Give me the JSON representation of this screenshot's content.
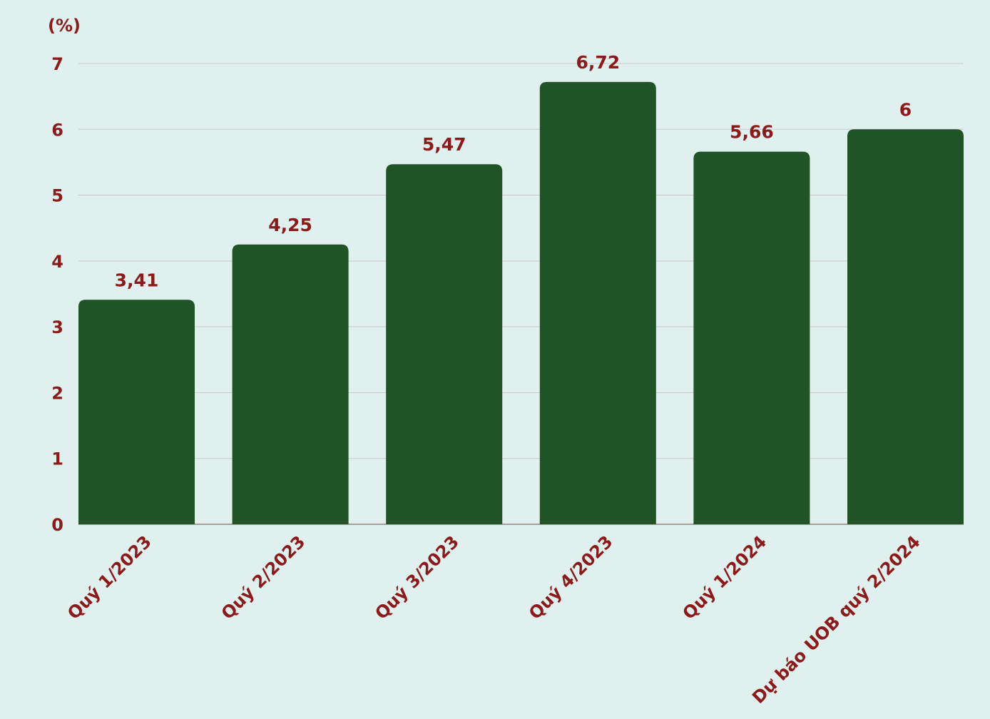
{
  "chart_data": {
    "type": "bar",
    "unit_label": "(%)",
    "categories": [
      "Quý 1/2023",
      "Quý 2/2023",
      "Quý 3/2023",
      "Quý 4/2023",
      "Quý 1/2024",
      "Dự báo UOB quý 2/2024"
    ],
    "values": [
      3.41,
      4.25,
      5.47,
      6.72,
      5.66,
      6
    ],
    "value_labels": [
      "3,41",
      "4,25",
      "5,47",
      "6,72",
      "5,66",
      "6"
    ],
    "yticks": [
      0,
      1,
      2,
      3,
      4,
      5,
      6,
      7
    ],
    "ylim": [
      0,
      7
    ],
    "grid": true,
    "legend": "none",
    "colors": {
      "bar": "#205325",
      "text": "#8b1a1a",
      "grid": "#c9c9c9",
      "background": "#e0f0ef"
    }
  }
}
